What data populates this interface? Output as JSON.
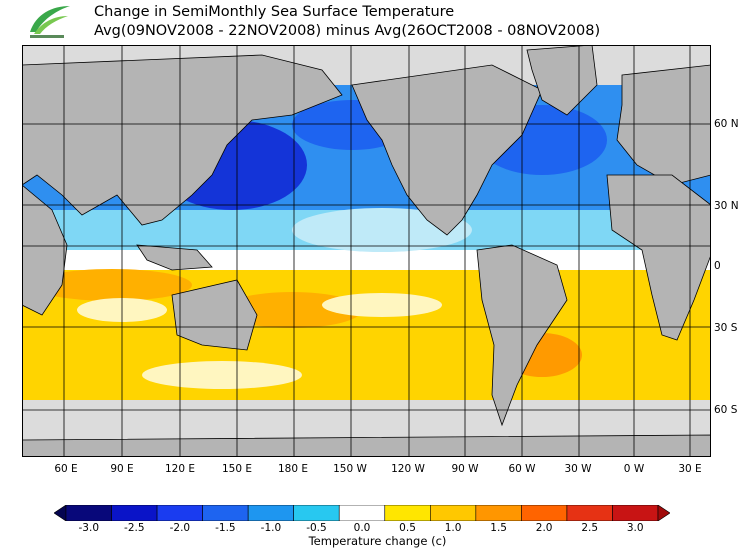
{
  "title": {
    "line1": "Change in SemiMonthly Sea Surface Temperature",
    "line2": "Avg(09NOV2008 - 22NOV2008) minus Avg(26OCT2008 - 08NOV2008)"
  },
  "map": {
    "lat_labels": [
      "60 N",
      "30 N",
      "0",
      "30 S",
      "60 S"
    ],
    "lon_labels": [
      "60 E",
      "90 E",
      "120 E",
      "150 E",
      "180 E",
      "150 W",
      "120 W",
      "90 W",
      "60 W",
      "30 W",
      "0 W",
      "30 E"
    ]
  },
  "colorbar": {
    "ticks": [
      "-3.0",
      "-2.5",
      "-2.0",
      "-1.5",
      "-1.0",
      "-0.5",
      "0.0",
      "0.5",
      "1.0",
      "1.5",
      "2.0",
      "2.5",
      "3.0"
    ],
    "colors": [
      "#08087a",
      "#0a14c8",
      "#1a3cf0",
      "#1e64f0",
      "#1e96f0",
      "#28c8f0",
      "#ffffff",
      "#ffe600",
      "#ffc800",
      "#ff9600",
      "#ff6400",
      "#e63214",
      "#c81414"
    ],
    "label": "Temperature change  (c)"
  }
}
